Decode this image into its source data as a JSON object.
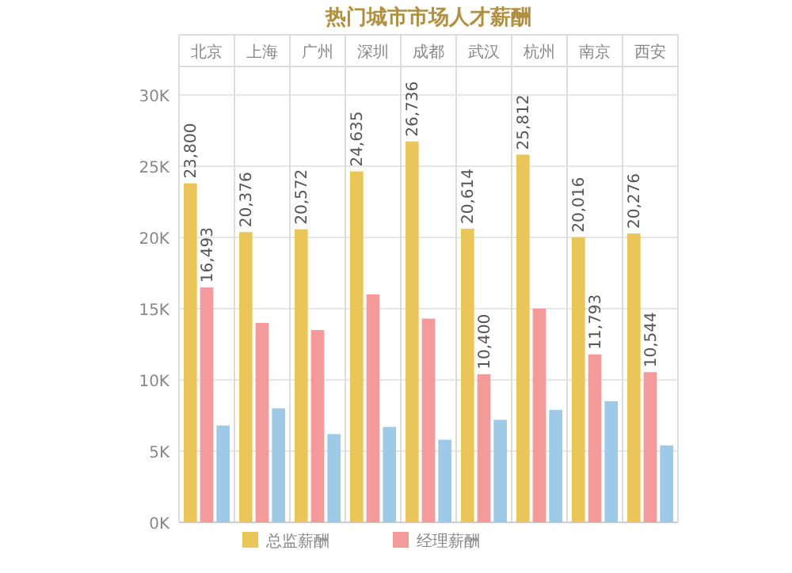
{
  "chart_data": {
    "type": "bar",
    "title": "热门城市市场人才薪酬",
    "categories": [
      "北京",
      "上海",
      "广州",
      "深圳",
      "成都",
      "武汉",
      "杭州",
      "南京",
      "西安"
    ],
    "series": [
      {
        "name": "总监薪酬",
        "color": "#eac55a",
        "values": [
          23800,
          20376,
          20572,
          24635,
          26736,
          20614,
          25812,
          20016,
          20276
        ],
        "value_labels": [
          "23,800",
          "20,376",
          "20,572",
          "24,635",
          "26,736",
          "20,614",
          "25,812",
          "20,016",
          "20,276"
        ]
      },
      {
        "name": "经理薪酬",
        "color": "#f49a9a",
        "values": [
          16493,
          14000,
          13500,
          16000,
          14300,
          10400,
          15000,
          11793,
          10544
        ],
        "value_labels": [
          "16,493",
          null,
          null,
          null,
          null,
          "10,400",
          null,
          "11,793",
          "10,544"
        ]
      },
      {
        "color": "#9ecae8",
        "values": [
          6800,
          8000,
          6200,
          6700,
          5800,
          7200,
          7900,
          8500,
          5400
        ]
      }
    ],
    "ylim": [
      0,
      32000
    ],
    "yticks": [
      {
        "value": 0,
        "label": "0K"
      },
      {
        "value": 5000,
        "label": "5K"
      },
      {
        "value": 10000,
        "label": "10K"
      },
      {
        "value": 15000,
        "label": "15K"
      },
      {
        "value": 20000,
        "label": "20K"
      },
      {
        "value": 25000,
        "label": "25K"
      },
      {
        "value": 30000,
        "label": "30K"
      }
    ],
    "grid": true,
    "legend": "bottom"
  }
}
